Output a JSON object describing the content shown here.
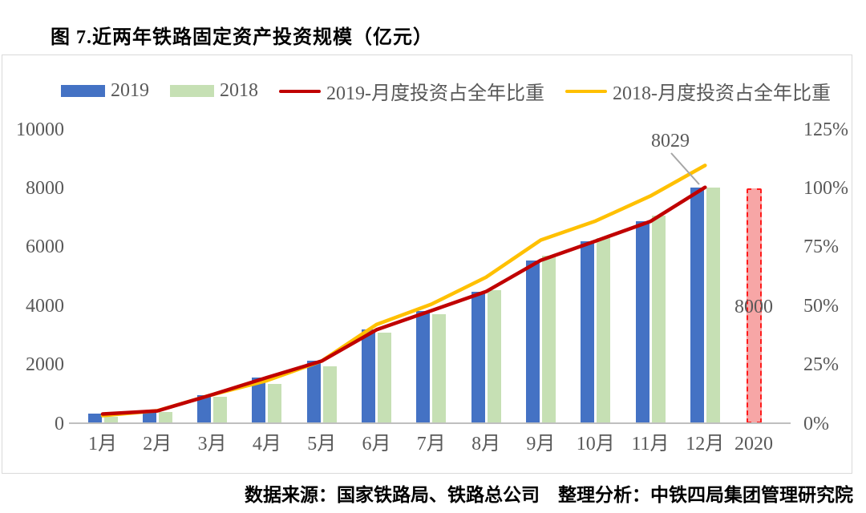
{
  "title": "图 7.近两年铁路固定资产投资规模（亿元）",
  "footer": {
    "text": "数据来源：国家铁路局、铁路总公司　整理分析：中铁四局集团管理研究院"
  },
  "legend": {
    "items": [
      {
        "label": "2019",
        "type": "bar",
        "color": "#4472C4"
      },
      {
        "label": "2018",
        "type": "bar",
        "color": "#C6E0B4"
      },
      {
        "label": "2019-月度投资占全年比重",
        "type": "line",
        "color": "#C00000"
      },
      {
        "label": "2018-月度投资占全年比重",
        "type": "line",
        "color": "#FFC000"
      }
    ]
  },
  "chart_data": {
    "type": "bar",
    "subtype": "grouped bars (left axis, 亿元) + cumulative share lines (right axis, %)",
    "title": "图 7.近两年铁路固定资产投资规模（亿元）",
    "categories": [
      "1月",
      "2月",
      "3月",
      "4月",
      "5月",
      "6月",
      "7月",
      "8月",
      "9月",
      "10月",
      "11月",
      "12月"
    ],
    "extra_category": "2020",
    "series": [
      {
        "name": "2019",
        "type": "bar",
        "axis": "left",
        "color": "#4472C4",
        "values": [
          330,
          430,
          980,
          1570,
          2130,
          3190,
          3840,
          4490,
          5550,
          6210,
          6870,
          8029
        ]
      },
      {
        "name": "2018",
        "type": "bar",
        "axis": "left",
        "color": "#C6E0B4",
        "values": [
          240,
          400,
          900,
          1340,
          1950,
          3080,
          3710,
          4550,
          5710,
          6300,
          7080,
          8028
        ]
      },
      {
        "name": "2019-月度投资占全年比重",
        "type": "line",
        "axis": "right",
        "color": "#C00000",
        "values": [
          4.1,
          5.4,
          12.3,
          19.6,
          26.6,
          39.9,
          48.0,
          56.1,
          69.4,
          77.6,
          85.9,
          100.4
        ]
      },
      {
        "name": "2018-月度投资占全年比重",
        "type": "line",
        "axis": "right",
        "color": "#FFC000",
        "values": [
          3.4,
          5.5,
          12.3,
          18.3,
          26.6,
          42.1,
          50.7,
          62.2,
          78.0,
          86.1,
          96.7,
          109.7
        ]
      }
    ],
    "left_axis": {
      "ticks": [
        "0",
        "2000",
        "4000",
        "6000",
        "8000",
        "10000"
      ],
      "min": 0,
      "max": 10000
    },
    "right_axis": {
      "ticks": [
        "0%",
        "25%",
        "50%",
        "75%",
        "100%",
        "125%"
      ],
      "min": 0,
      "max": 125
    },
    "grid": "off",
    "legend_position": "top",
    "annotation": {
      "text": "8029",
      "target_month": "12月",
      "target_series": "2019"
    },
    "plan_2020": {
      "category": "2020",
      "value": 8000,
      "label": "8000",
      "style": "red dashed bar"
    }
  }
}
